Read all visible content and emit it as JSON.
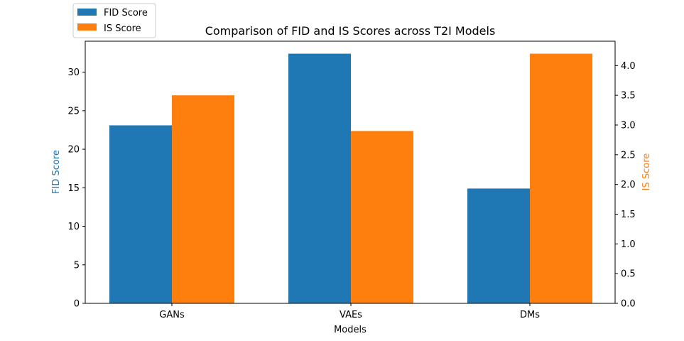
{
  "chart_data": {
    "type": "bar",
    "title": "Comparison of FID and IS Scores across T2I Models",
    "xlabel": "Models",
    "ylabel_left": "FID Score",
    "ylabel_right": "IS Score",
    "categories": [
      "GANs",
      "VAEs",
      "DMs"
    ],
    "series": [
      {
        "name": "FID Score",
        "axis": "left",
        "color": "#1f77b4",
        "values": [
          23.1,
          32.4,
          14.9
        ]
      },
      {
        "name": "IS Score",
        "axis": "right",
        "color": "#ff7f0e",
        "values": [
          3.5,
          2.9,
          4.2
        ]
      }
    ],
    "ylim_left": [
      0,
      34.02
    ],
    "ylim_right": [
      0,
      4.41
    ],
    "yticks_left": [
      "0",
      "5",
      "10",
      "15",
      "20",
      "25",
      "30"
    ],
    "yticks_right": [
      "0.0",
      "0.5",
      "1.0",
      "1.5",
      "2.0",
      "2.5",
      "3.0",
      "3.5",
      "4.0"
    ],
    "legend_position": "top-left, outside axes",
    "grid": false
  }
}
